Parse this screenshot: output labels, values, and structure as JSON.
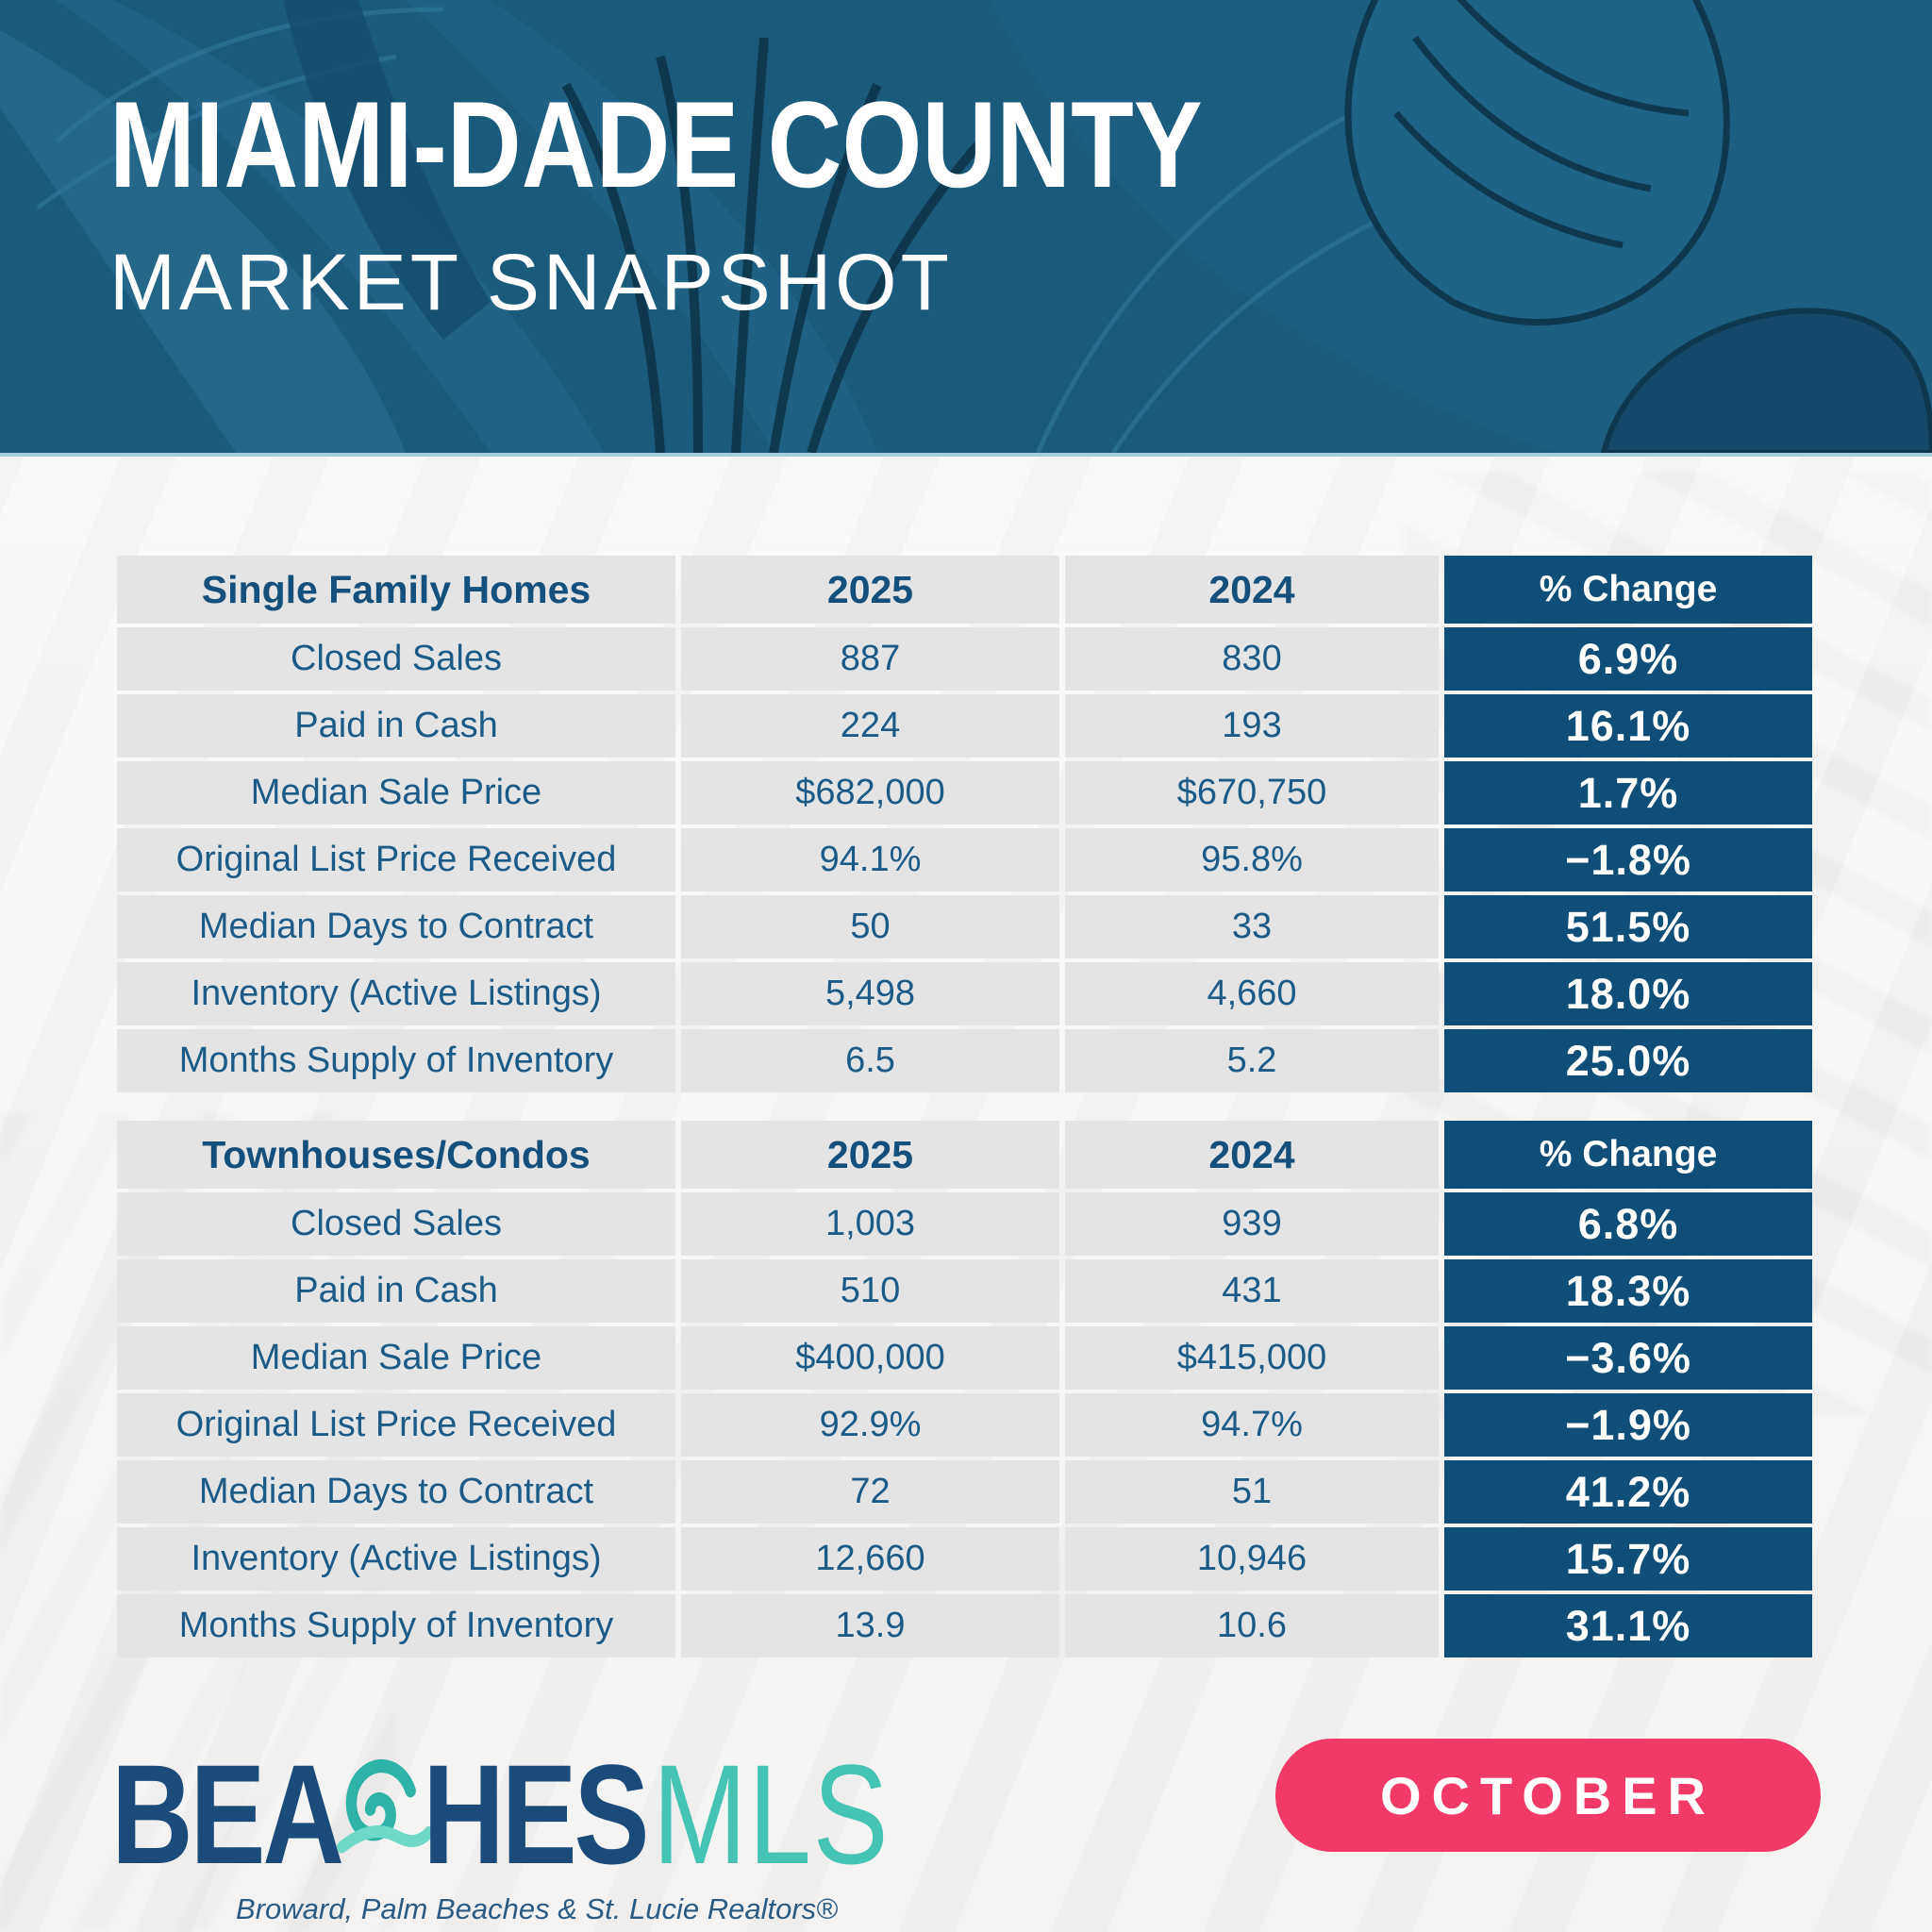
{
  "header": {
    "title": "MIAMI-DADE COUNTY",
    "subtitle": "MARKET SNAPSHOT"
  },
  "tables": [
    {
      "category": "Single Family Homes",
      "col_2025": "2025",
      "col_2024": "2024",
      "col_change": "% Change",
      "rows": [
        {
          "label": "Closed Sales",
          "y2025": "887",
          "y2024": "830",
          "change": "6.9%"
        },
        {
          "label": "Paid in Cash",
          "y2025": "224",
          "y2024": "193",
          "change": "16.1%"
        },
        {
          "label": "Median Sale Price",
          "y2025": "$682,000",
          "y2024": "$670,750",
          "change": "1.7%"
        },
        {
          "label": "Original List Price Received",
          "y2025": "94.1%",
          "y2024": "95.8%",
          "change": "−1.8%"
        },
        {
          "label": "Median Days to Contract",
          "y2025": "50",
          "y2024": "33",
          "change": "51.5%"
        },
        {
          "label": "Inventory (Active Listings)",
          "y2025": "5,498",
          "y2024": "4,660",
          "change": "18.0%"
        },
        {
          "label": "Months Supply of Inventory",
          "y2025": "6.5",
          "y2024": "5.2",
          "change": "25.0%"
        }
      ]
    },
    {
      "category": "Townhouses/Condos",
      "col_2025": "2025",
      "col_2024": "2024",
      "col_change": "% Change",
      "rows": [
        {
          "label": "Closed Sales",
          "y2025": "1,003",
          "y2024": "939",
          "change": "6.8%"
        },
        {
          "label": "Paid in Cash",
          "y2025": "510",
          "y2024": "431",
          "change": "18.3%"
        },
        {
          "label": "Median Sale Price",
          "y2025": "$400,000",
          "y2024": "$415,000",
          "change": "−3.6%"
        },
        {
          "label": "Original List Price Received",
          "y2025": "92.9%",
          "y2024": "94.7%",
          "change": "−1.9%"
        },
        {
          "label": "Median Days to Contract",
          "y2025": "72",
          "y2024": "51",
          "change": "41.2%"
        },
        {
          "label": "Inventory (Active Listings)",
          "y2025": "12,660",
          "y2024": "10,946",
          "change": "15.7%"
        },
        {
          "label": "Months Supply of Inventory",
          "y2025": "13.9",
          "y2024": "10.6",
          "change": "31.1%"
        }
      ]
    }
  ],
  "chart_data": [
    {
      "type": "table",
      "title": "Single Family Homes",
      "columns": [
        "Single Family Homes",
        "2025",
        "2024",
        "% Change"
      ],
      "rows": [
        [
          "Closed Sales",
          887,
          830,
          6.9
        ],
        [
          "Paid in Cash",
          224,
          193,
          16.1
        ],
        [
          "Median Sale Price",
          682000,
          670750,
          1.7
        ],
        [
          "Original List Price Received",
          94.1,
          95.8,
          -1.8
        ],
        [
          "Median Days to Contract",
          50,
          33,
          51.5
        ],
        [
          "Inventory (Active Listings)",
          5498,
          4660,
          18.0
        ],
        [
          "Months Supply of Inventory",
          6.5,
          5.2,
          25.0
        ]
      ]
    },
    {
      "type": "table",
      "title": "Townhouses/Condos",
      "columns": [
        "Townhouses/Condos",
        "2025",
        "2024",
        "% Change"
      ],
      "rows": [
        [
          "Closed Sales",
          1003,
          939,
          6.8
        ],
        [
          "Paid in Cash",
          510,
          431,
          18.3
        ],
        [
          "Median Sale Price",
          400000,
          415000,
          -3.6
        ],
        [
          "Original List Price Received",
          92.9,
          94.7,
          -1.9
        ],
        [
          "Median Days to Contract",
          72,
          51,
          41.2
        ],
        [
          "Inventory (Active Listings)",
          12660,
          10946,
          15.7
        ],
        [
          "Months Supply of Inventory",
          13.9,
          10.6,
          31.1
        ]
      ]
    }
  ],
  "footer": {
    "logo_beaches_left": "BEA",
    "logo_beaches_right": "HES",
    "logo_mls": "MLS",
    "logo_tagline": "Broward, Palm Beaches & St. Lucie Realtors®",
    "month_badge": "OCTOBER"
  },
  "colors": {
    "band_teal": "#1a5a7d",
    "accent_dark_blue": "#0f4e78",
    "cell_gray": "#e4e4e4",
    "table_text_blue": "#1d5b86",
    "badge_pink": "#f23a68",
    "logo_navy": "#1b4b7a",
    "logo_teal": "#45c4b4"
  }
}
